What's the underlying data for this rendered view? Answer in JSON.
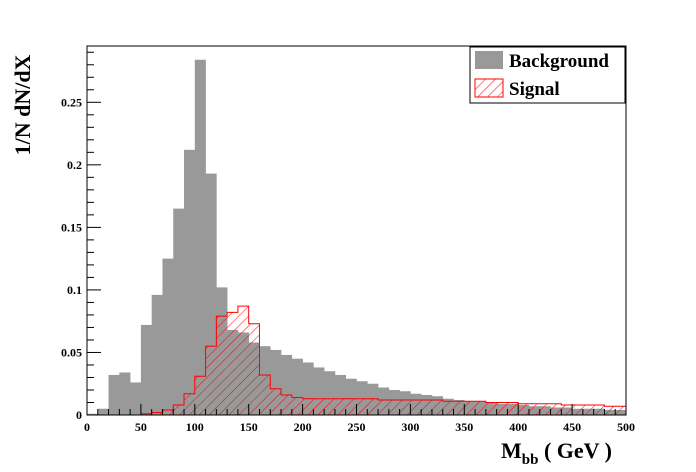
{
  "chart_data": {
    "type": "bar",
    "subtype": "overlaid-histogram",
    "title": "",
    "xlabel": "M",
    "xlabel_subscript": "bb",
    "xlabel_unit": " ( GeV )",
    "ylabel": "1/N dN/dX",
    "xlim": [
      0,
      500
    ],
    "ylim": [
      0,
      0.295
    ],
    "bin_width": 10,
    "x_ticks": [
      0,
      50,
      100,
      150,
      200,
      250,
      300,
      350,
      400,
      450,
      500
    ],
    "y_ticks": [
      0,
      0.05,
      0.1,
      0.15,
      0.2,
      0.25
    ],
    "y_tick_labels": [
      "0",
      "0.05",
      "0.1",
      "0.15",
      "0.2",
      "0.25"
    ],
    "grid": false,
    "legend_position": "top-right",
    "series": [
      {
        "name": "Background",
        "color": "#999999",
        "style": "filled",
        "bin_edges_start": 0,
        "values": [
          0.001,
          0.005,
          0.032,
          0.034,
          0.026,
          0.072,
          0.096,
          0.125,
          0.165,
          0.212,
          0.284,
          0.193,
          0.102,
          0.068,
          0.066,
          0.058,
          0.055,
          0.052,
          0.048,
          0.045,
          0.042,
          0.038,
          0.035,
          0.032,
          0.029,
          0.027,
          0.025,
          0.022,
          0.02,
          0.019,
          0.017,
          0.016,
          0.015,
          0.013,
          0.012,
          0.011,
          0.011,
          0.01,
          0.009,
          0.009,
          0.008,
          0.007,
          0.007,
          0.006,
          0.006,
          0.005,
          0.005,
          0.005,
          0.004,
          0.004
        ]
      },
      {
        "name": "Signal",
        "color": "#ff0000",
        "style": "hatched",
        "bin_edges_start": 0,
        "values": [
          0,
          0,
          0,
          0,
          0,
          0.001,
          0.002,
          0.004,
          0.008,
          0.017,
          0.031,
          0.055,
          0.079,
          0.082,
          0.087,
          0.073,
          0.032,
          0.021,
          0.016,
          0.014,
          0.013,
          0.013,
          0.013,
          0.013,
          0.013,
          0.013,
          0.013,
          0.012,
          0.012,
          0.012,
          0.012,
          0.012,
          0.012,
          0.011,
          0.011,
          0.011,
          0.011,
          0.01,
          0.01,
          0.01,
          0.009,
          0.009,
          0.009,
          0.009,
          0.008,
          0.008,
          0.008,
          0.008,
          0.007,
          0.007
        ]
      }
    ]
  }
}
